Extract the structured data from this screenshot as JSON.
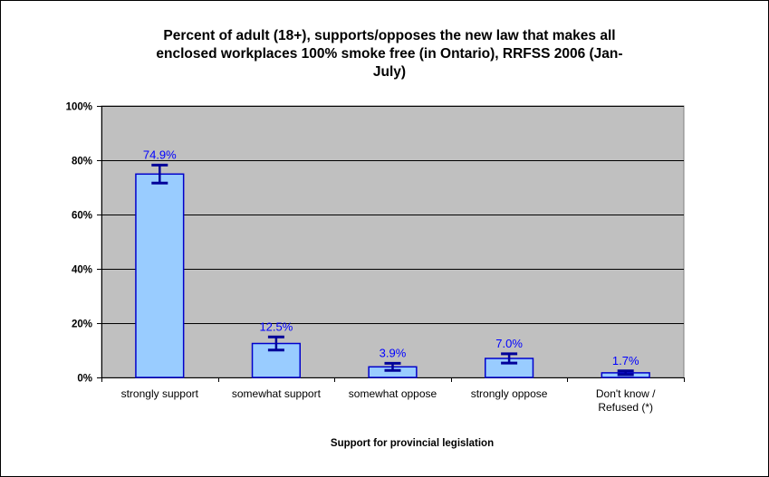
{
  "chart_data": {
    "type": "bar",
    "title_lines": [
      "Percent of adult (18+),  supports/opposes the new law that makes all",
      "enclosed workplaces 100% smoke free (in Ontario), RRFSS 2006 (Jan-",
      "July)"
    ],
    "xlabel": "Support for provincial legislation",
    "ylabel": "",
    "categories": [
      [
        "strongly support"
      ],
      [
        "somewhat support"
      ],
      [
        "somewhat oppose"
      ],
      [
        "strongly oppose"
      ],
      [
        "Don't know /",
        "Refused (*)"
      ]
    ],
    "values": [
      74.9,
      12.5,
      3.9,
      7.0,
      1.7
    ],
    "data_labels": [
      "74.9%",
      "12.5%",
      "3.9%",
      "7.0%",
      "1.7%"
    ],
    "error_low": [
      71.6,
      10.1,
      2.6,
      5.3,
      1.0
    ],
    "error_high": [
      78.2,
      14.9,
      5.2,
      8.7,
      2.4
    ],
    "ylim": [
      0,
      100
    ],
    "yticks": [
      0,
      20,
      40,
      60,
      80,
      100
    ],
    "ytick_labels": [
      "0%",
      "20%",
      "40%",
      "60%",
      "80%",
      "100%"
    ],
    "grid": true,
    "legend": "none",
    "colors": {
      "plot_bg": "#c0c0c0",
      "bar_fill": "#99ccff",
      "bar_stroke": "#0000cc",
      "error_bar": "#000099",
      "data_label": "#0000ff"
    }
  }
}
